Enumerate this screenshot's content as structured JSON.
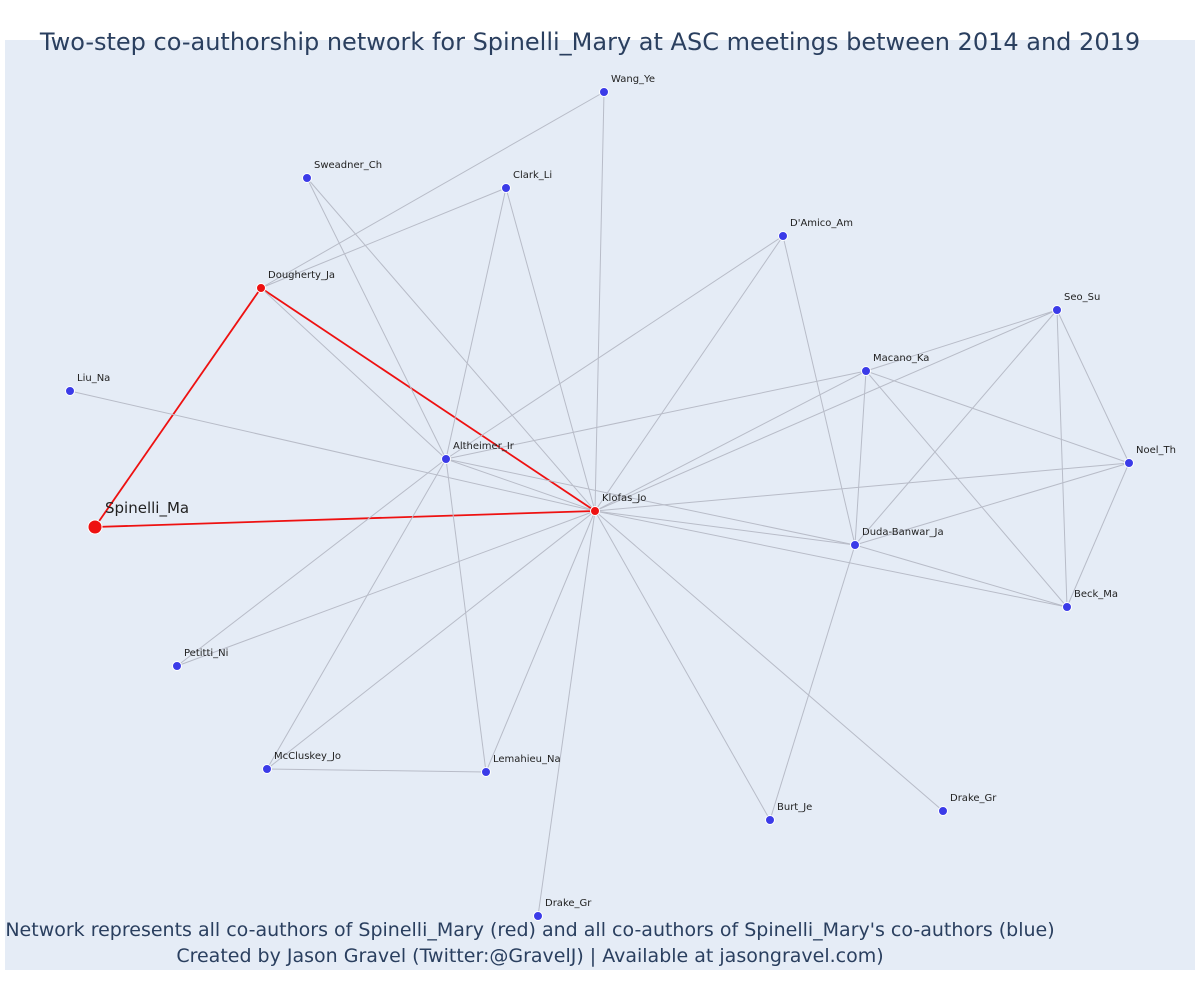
{
  "title": "Two-step co-authorship network for Spinelli_Mary at ASC meetings between 2014 and 2019",
  "caption": {
    "line1": "Network represents all co-authors of Spinelli_Mary (red) and all co-authors of Spinelli_Mary's co-authors (blue)",
    "line2": "Created by Jason Gravel (Twitter:@GravelJ) | Available at jasongravel.com)"
  },
  "colors": {
    "plot_bg": "#e5ecf6",
    "first_step": "#ee1111",
    "second_step": "#3b3be8",
    "edge": "#b8bcc8"
  },
  "nodes": [
    {
      "id": "Spinelli_Ma",
      "label": "Spinelli_Ma",
      "group": "focus"
    },
    {
      "id": "Dougherty_Ja",
      "label": "Dougherty_Ja",
      "group": "first_step"
    },
    {
      "id": "Klofas_Jo",
      "label": "Klofas_Jo",
      "group": "first_step"
    },
    {
      "id": "Wang_Ye",
      "label": "Wang_Ye",
      "group": "second_step"
    },
    {
      "id": "Sweadner_Ch",
      "label": "Sweadner_Ch",
      "group": "second_step"
    },
    {
      "id": "Clark_Li",
      "label": "Clark_Li",
      "group": "second_step"
    },
    {
      "id": "D'Amico_Am",
      "label": "D'Amico_Am",
      "group": "second_step"
    },
    {
      "id": "Seo_Su",
      "label": "Seo_Su",
      "group": "second_step"
    },
    {
      "id": "Macano_Ka",
      "label": "Macano_Ka",
      "group": "second_step"
    },
    {
      "id": "Liu_Na",
      "label": "Liu_Na",
      "group": "second_step"
    },
    {
      "id": "Altheimer_Ir",
      "label": "Altheimer_Ir",
      "group": "second_step"
    },
    {
      "id": "Noel_Th",
      "label": "Noel_Th",
      "group": "second_step"
    },
    {
      "id": "Duda-Banwar_Ja",
      "label": "Duda-Banwar_Ja",
      "group": "second_step"
    },
    {
      "id": "Beck_Ma",
      "label": "Beck_Ma",
      "group": "second_step"
    },
    {
      "id": "Petitti_Ni",
      "label": "Petitti_Ni",
      "group": "second_step"
    },
    {
      "id": "McCluskey_Jo",
      "label": "McCluskey_Jo",
      "group": "second_step"
    },
    {
      "id": "Lemahieu_Na",
      "label": "Lemahieu_Na",
      "group": "second_step"
    },
    {
      "id": "Burt_Je",
      "label": "Burt_Je",
      "group": "second_step"
    },
    {
      "id": "Drake_Gr_a",
      "label": "Drake_Gr",
      "group": "second_step"
    },
    {
      "id": "Drake_Gr_b",
      "label": "Drake_Gr",
      "group": "second_step"
    }
  ],
  "edges": [
    [
      "Spinelli_Ma",
      "Dougherty_Ja"
    ],
    [
      "Spinelli_Ma",
      "Klofas_Jo"
    ],
    [
      "Dougherty_Ja",
      "Klofas_Jo"
    ],
    [
      "Dougherty_Ja",
      "Wang_Ye"
    ],
    [
      "Dougherty_Ja",
      "Clark_Li"
    ],
    [
      "Dougherty_Ja",
      "Altheimer_Ir"
    ],
    [
      "Klofas_Jo",
      "Wang_Ye"
    ],
    [
      "Klofas_Jo",
      "Sweadner_Ch"
    ],
    [
      "Klofas_Jo",
      "Clark_Li"
    ],
    [
      "Klofas_Jo",
      "D'Amico_Am"
    ],
    [
      "Klofas_Jo",
      "Seo_Su"
    ],
    [
      "Klofas_Jo",
      "Macano_Ka"
    ],
    [
      "Klofas_Jo",
      "Liu_Na"
    ],
    [
      "Klofas_Jo",
      "Altheimer_Ir"
    ],
    [
      "Klofas_Jo",
      "Noel_Th"
    ],
    [
      "Klofas_Jo",
      "Duda-Banwar_Ja"
    ],
    [
      "Klofas_Jo",
      "Beck_Ma"
    ],
    [
      "Klofas_Jo",
      "Petitti_Ni"
    ],
    [
      "Klofas_Jo",
      "McCluskey_Jo"
    ],
    [
      "Klofas_Jo",
      "Lemahieu_Na"
    ],
    [
      "Klofas_Jo",
      "Burt_Je"
    ],
    [
      "Klofas_Jo",
      "Drake_Gr_a"
    ],
    [
      "Klofas_Jo",
      "Drake_Gr_b"
    ],
    [
      "Altheimer_Ir",
      "Sweadner_Ch"
    ],
    [
      "Altheimer_Ir",
      "Clark_Li"
    ],
    [
      "Altheimer_Ir",
      "D'Amico_Am"
    ],
    [
      "Altheimer_Ir",
      "Macano_Ka"
    ],
    [
      "Altheimer_Ir",
      "Duda-Banwar_Ja"
    ],
    [
      "Altheimer_Ir",
      "Petitti_Ni"
    ],
    [
      "Altheimer_Ir",
      "McCluskey_Jo"
    ],
    [
      "Altheimer_Ir",
      "Lemahieu_Na"
    ],
    [
      "McCluskey_Jo",
      "Lemahieu_Na"
    ],
    [
      "D'Amico_Am",
      "Duda-Banwar_Ja"
    ],
    [
      "Seo_Su",
      "Macano_Ka"
    ],
    [
      "Seo_Su",
      "Noel_Th"
    ],
    [
      "Seo_Su",
      "Duda-Banwar_Ja"
    ],
    [
      "Seo_Su",
      "Beck_Ma"
    ],
    [
      "Macano_Ka",
      "Noel_Th"
    ],
    [
      "Macano_Ka",
      "Duda-Banwar_Ja"
    ],
    [
      "Macano_Ka",
      "Beck_Ma"
    ],
    [
      "Noel_Th",
      "Duda-Banwar_Ja"
    ],
    [
      "Noel_Th",
      "Beck_Ma"
    ],
    [
      "Duda-Banwar_Ja",
      "Beck_Ma"
    ],
    [
      "Duda-Banwar_Ja",
      "Burt_Je"
    ]
  ]
}
